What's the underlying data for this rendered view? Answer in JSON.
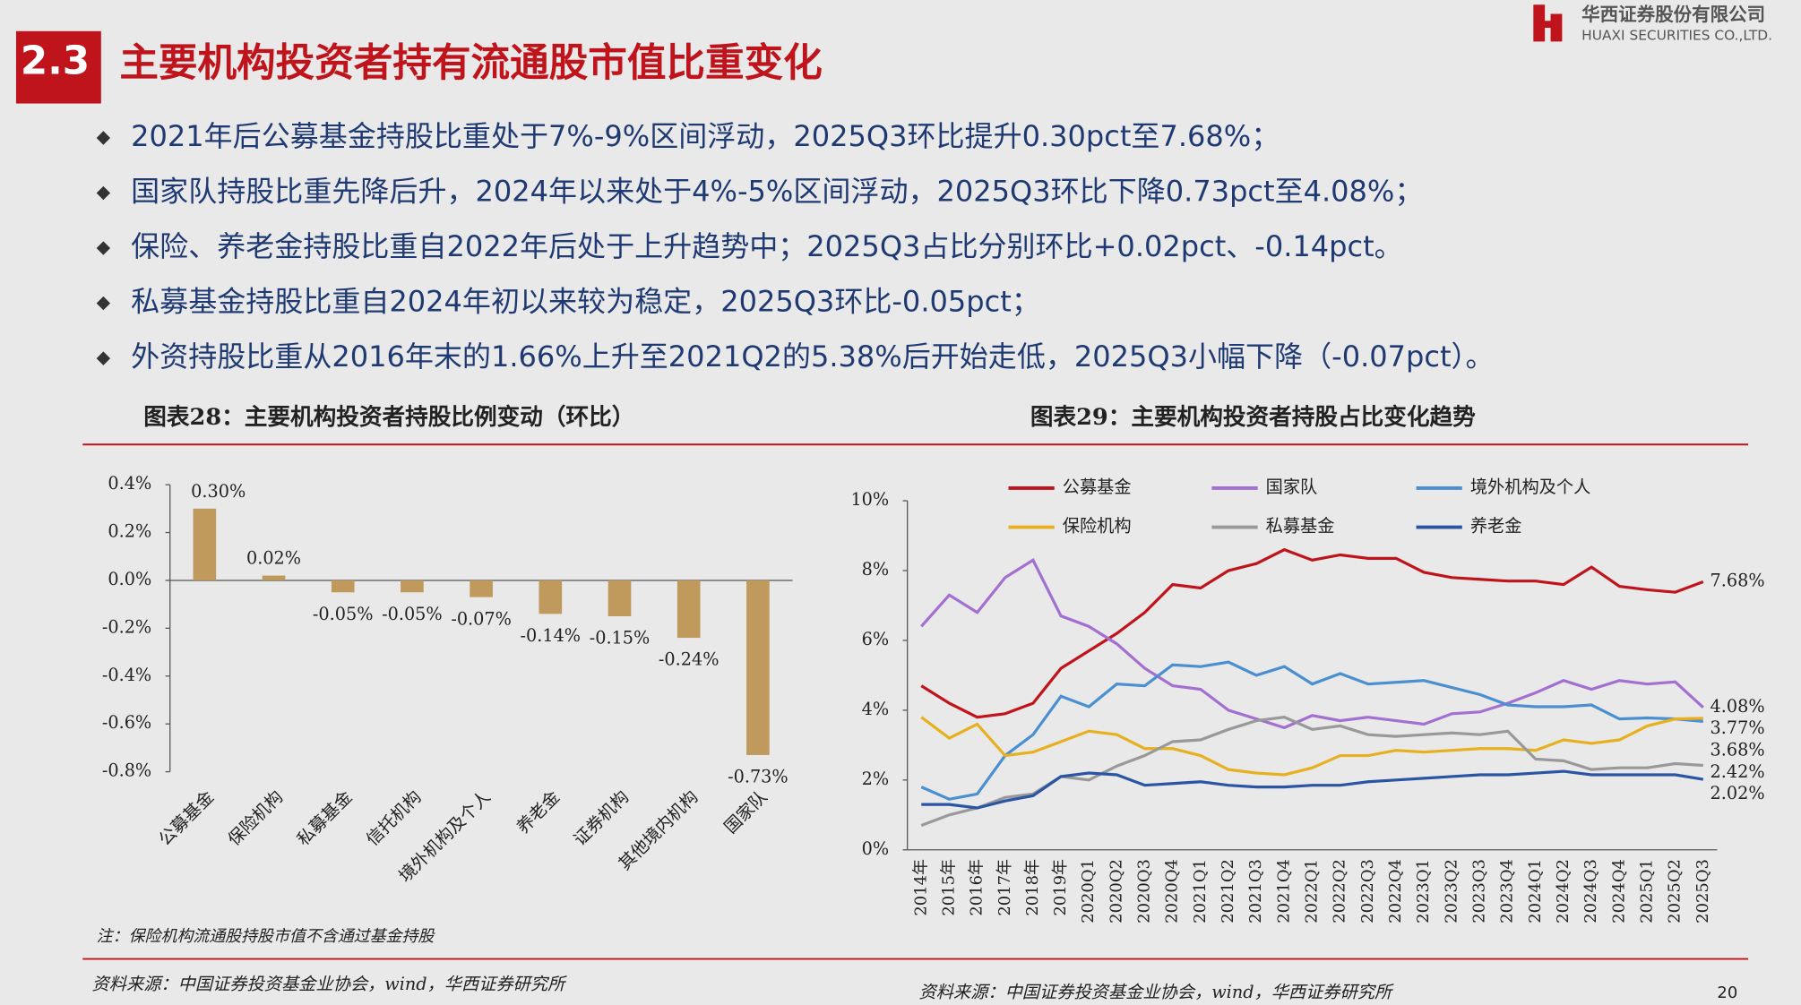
{
  "header": {
    "section": "2.3",
    "title": "主要机构投资者持有流通股市值比重变化",
    "company": "华西证券股份有限公司",
    "company_en": "HUAXI SECURITIES CO.,LTD."
  },
  "bullets": [
    "2021年后公募基金持股比重处于7%-9%区间浮动，2025Q3环比提升0.30pct至7.68%；",
    "国家队持股比重先降后升，2024年以来处于4%-5%区间浮动，2025Q3环比下降0.73pct至4.08%；",
    "保险、养老金持股比重自2022年后处于上升趋势中；2025Q3占比分别环比+0.02pct、-0.14pct。",
    "私募基金持股比重自2024年初以来较为稳定，2025Q3环比-0.05pct；",
    "外资持股比重从2016年末的1.66%上升至2021Q2的5.38%后开始走低，2025Q3小幅下降（-0.07pct）。"
  ],
  "note": "注：保险机构流通股持股市值不含通过基金持股",
  "sources": [
    "资料来源：中国证券投资基金业协会，wind，华西证券研究所",
    "资料来源：中国证券投资基金业协会，wind，华西证券研究所"
  ],
  "page_number": "20",
  "chart_data": [
    {
      "type": "bar",
      "title": "图表28：主要机构投资者持股比例变动（环比）",
      "color": "#bf9a5c",
      "categories": [
        "公募基金",
        "保险机构",
        "私募基金",
        "信托机构",
        "境外机构及个人",
        "养老金",
        "证券机构",
        "其他境内机构",
        "国家队"
      ],
      "values": [
        0.3,
        0.02,
        -0.05,
        -0.05,
        -0.07,
        -0.14,
        -0.15,
        -0.24,
        -0.73
      ],
      "value_labels": [
        "0.30%",
        "0.02%",
        "-0.05%",
        "-0.05%",
        "-0.07%",
        "-0.14%",
        "-0.15%",
        "-0.24%",
        "-0.73%"
      ],
      "ylim": [
        -0.8,
        0.4
      ],
      "yticks": [
        {
          "value": -0.8,
          "label": "-0.8%"
        },
        {
          "value": -0.6,
          "label": "-0.6%"
        },
        {
          "value": -0.4,
          "label": "-0.4%"
        },
        {
          "value": -0.2,
          "label": "-0.2%"
        },
        {
          "value": 0,
          "label": "0.0%"
        },
        {
          "value": 0.2,
          "label": "0.2%"
        },
        {
          "value": 0.4,
          "label": "0.4%"
        }
      ]
    },
    {
      "type": "line",
      "title": "图表29：主要机构投资者持股占比变化趋势",
      "legend": "top",
      "categories": [
        "2014年",
        "2015年",
        "2016年",
        "2017年",
        "2018年",
        "2019年",
        "2020Q1",
        "2020Q2",
        "2020Q3",
        "2020Q4",
        "2021Q1",
        "2021Q2",
        "2021Q3",
        "2021Q4",
        "2022Q1",
        "2022Q2",
        "2022Q3",
        "2022Q4",
        "2023Q1",
        "2023Q2",
        "2023Q3",
        "2023Q4",
        "2024Q1",
        "2024Q2",
        "2024Q3",
        "2024Q4",
        "2025Q1",
        "2025Q2",
        "2025Q3"
      ],
      "ylim": [
        0,
        10
      ],
      "yticks": [
        {
          "value": 0,
          "label": "0%"
        },
        {
          "value": 2,
          "label": "2%"
        },
        {
          "value": 4,
          "label": "4%"
        },
        {
          "value": 6,
          "label": "6%"
        },
        {
          "value": 8,
          "label": "8%"
        },
        {
          "value": 10,
          "label": "10%"
        }
      ],
      "series": [
        {
          "name": "公募基金",
          "color": "#c0141c",
          "values": [
            4.7,
            4.2,
            3.8,
            3.9,
            4.2,
            5.2,
            5.7,
            6.2,
            6.8,
            7.6,
            7.5,
            8.0,
            8.2,
            8.6,
            8.3,
            8.45,
            8.35,
            8.35,
            7.95,
            7.8,
            7.75,
            7.7,
            7.7,
            7.6,
            8.1,
            7.55,
            7.45,
            7.38,
            7.68
          ],
          "value_labels": [
            null,
            null,
            null,
            null,
            null,
            null,
            null,
            null,
            null,
            null,
            null,
            null,
            null,
            null,
            null,
            null,
            null,
            null,
            null,
            null,
            null,
            null,
            null,
            null,
            null,
            null,
            null,
            null,
            "7.68%"
          ]
        },
        {
          "name": "国家队",
          "color": "#a36fd0",
          "values": [
            6.4,
            7.3,
            6.8,
            7.8,
            8.3,
            6.7,
            6.4,
            5.9,
            5.2,
            4.7,
            4.6,
            4.0,
            3.75,
            3.5,
            3.85,
            3.7,
            3.8,
            3.7,
            3.6,
            3.9,
            3.95,
            4.2,
            4.5,
            4.85,
            4.6,
            4.85,
            4.75,
            4.81,
            4.08
          ],
          "value_labels": [
            null,
            null,
            null,
            null,
            null,
            null,
            null,
            null,
            null,
            null,
            null,
            null,
            null,
            null,
            null,
            null,
            null,
            null,
            null,
            null,
            null,
            null,
            null,
            null,
            null,
            null,
            null,
            null,
            "4.08%"
          ]
        },
        {
          "name": "境外机构及个人",
          "color": "#4a8fd0",
          "values": [
            1.8,
            1.45,
            1.6,
            2.7,
            3.3,
            4.4,
            4.1,
            4.75,
            4.7,
            5.3,
            5.25,
            5.38,
            5.0,
            5.25,
            4.75,
            5.05,
            4.75,
            4.8,
            4.85,
            4.65,
            4.45,
            4.15,
            4.1,
            4.1,
            4.15,
            3.75,
            3.78,
            3.75,
            3.68
          ],
          "value_labels": [
            null,
            null,
            null,
            null,
            null,
            null,
            null,
            null,
            null,
            null,
            null,
            null,
            null,
            null,
            null,
            null,
            null,
            null,
            null,
            null,
            null,
            null,
            null,
            null,
            null,
            null,
            null,
            null,
            "3.68%"
          ]
        },
        {
          "name": "保险机构",
          "color": "#e6b020",
          "values": [
            3.8,
            3.2,
            3.6,
            2.7,
            2.8,
            3.1,
            3.4,
            3.3,
            2.9,
            2.9,
            2.7,
            2.3,
            2.2,
            2.15,
            2.35,
            2.7,
            2.7,
            2.85,
            2.8,
            2.85,
            2.9,
            2.9,
            2.85,
            3.15,
            3.05,
            3.15,
            3.55,
            3.75,
            3.77
          ],
          "value_labels": [
            null,
            null,
            null,
            null,
            null,
            null,
            null,
            null,
            null,
            null,
            null,
            null,
            null,
            null,
            null,
            null,
            null,
            null,
            null,
            null,
            null,
            null,
            null,
            null,
            null,
            null,
            null,
            null,
            "3.77%"
          ]
        },
        {
          "name": "私募基金",
          "color": "#999999",
          "values": [
            0.7,
            1.0,
            1.2,
            1.5,
            1.6,
            2.1,
            2.0,
            2.4,
            2.7,
            3.1,
            3.15,
            3.45,
            3.7,
            3.8,
            3.45,
            3.55,
            3.3,
            3.25,
            3.3,
            3.35,
            3.3,
            3.4,
            2.6,
            2.55,
            2.3,
            2.35,
            2.35,
            2.47,
            2.42
          ],
          "value_labels": [
            null,
            null,
            null,
            null,
            null,
            null,
            null,
            null,
            null,
            null,
            null,
            null,
            null,
            null,
            null,
            null,
            null,
            null,
            null,
            null,
            null,
            null,
            null,
            null,
            null,
            null,
            null,
            null,
            "2.42%"
          ]
        },
        {
          "name": "养老金",
          "color": "#2a55a3",
          "values": [
            1.3,
            1.3,
            1.2,
            1.4,
            1.55,
            2.1,
            2.2,
            2.15,
            1.85,
            1.9,
            1.95,
            1.85,
            1.8,
            1.8,
            1.85,
            1.85,
            1.95,
            2.0,
            2.05,
            2.1,
            2.15,
            2.15,
            2.2,
            2.25,
            2.15,
            2.15,
            2.15,
            2.15,
            2.02
          ],
          "value_labels": [
            null,
            null,
            null,
            null,
            null,
            null,
            null,
            null,
            null,
            null,
            null,
            null,
            null,
            null,
            null,
            null,
            null,
            null,
            null,
            null,
            null,
            null,
            null,
            null,
            null,
            null,
            null,
            null,
            "2.02%"
          ]
        }
      ]
    }
  ]
}
